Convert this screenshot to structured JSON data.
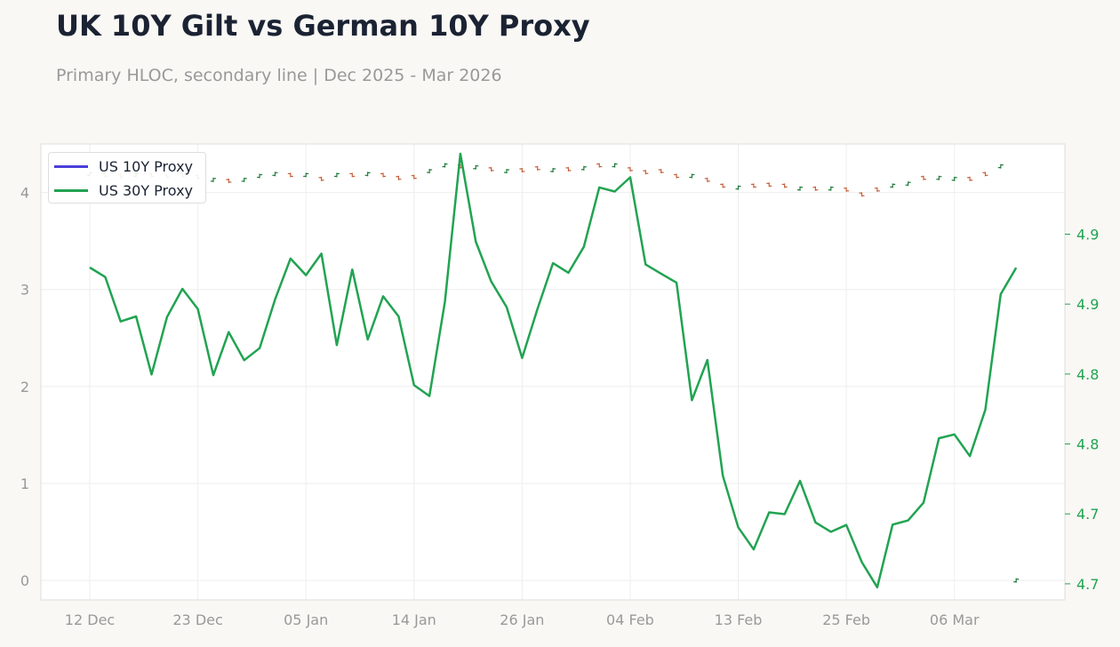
{
  "title": "UK 10Y Gilt vs German 10Y Proxy",
  "subtitle": "Primary HLOC, secondary line | Dec 2025 - Mar 2026",
  "colors": {
    "up": "#1e7a3a",
    "down": "#c4603a",
    "line": "#22a352",
    "legend_10y": "#4a3fd8",
    "axis_text": "#999999",
    "right_axis_text": "#22a352",
    "grid": "#eeeeee",
    "frame": "#dddddd"
  },
  "chart_data": {
    "type": "line",
    "x_labels": [
      "12 Dec",
      "23 Dec",
      "05 Jan",
      "14 Jan",
      "26 Jan",
      "04 Feb",
      "13 Feb",
      "25 Feb",
      "06 Mar"
    ],
    "left_axis": {
      "ylim": [
        -0.2,
        4.5
      ],
      "ticks": [
        0,
        1,
        2,
        3,
        4
      ]
    },
    "right_axis": {
      "ylim": [
        4.6385,
        4.9645
      ],
      "ticks": [
        4.65,
        4.7,
        4.75,
        4.8,
        4.85,
        4.9
      ],
      "tick_labels": [
        "4.7",
        "4.7",
        "4.8",
        "4.8",
        "4.9",
        "4.9"
      ]
    },
    "grid": true,
    "legend": {
      "placement": "top-left",
      "entries": [
        "US 10Y Proxy",
        "US 30Y Proxy"
      ]
    },
    "series": [
      {
        "name": "US 10Y Proxy",
        "kind": "hloc",
        "axis": "left",
        "up": [
          true,
          false,
          false,
          true,
          false,
          false,
          false,
          false,
          true,
          false,
          true,
          true,
          true,
          false,
          true,
          false,
          true,
          false,
          true,
          false,
          false,
          false,
          true,
          true,
          false,
          true,
          false,
          true,
          false,
          false,
          true,
          false,
          true,
          false,
          true,
          false,
          false,
          false,
          false,
          true,
          false,
          false,
          true,
          false,
          false,
          false,
          true,
          false,
          true,
          false,
          false,
          false,
          true,
          true,
          false,
          true,
          true,
          false,
          false,
          true,
          true
        ],
        "y": [
          4.19,
          4.18,
          4.17,
          4.18,
          4.18,
          4.17,
          4.18,
          4.16,
          4.13,
          4.12,
          4.13,
          4.17,
          4.19,
          4.18,
          4.18,
          4.14,
          4.18,
          4.18,
          4.19,
          4.18,
          4.15,
          4.16,
          4.22,
          4.28,
          4.27,
          4.26,
          4.24,
          4.22,
          4.23,
          4.25,
          4.23,
          4.24,
          4.25,
          4.28,
          4.28,
          4.24,
          4.21,
          4.22,
          4.17,
          4.17,
          4.13,
          4.07,
          4.05,
          4.07,
          4.08,
          4.07,
          4.04,
          4.04,
          4.04,
          4.03,
          3.98,
          4.03,
          4.07,
          4.09,
          4.15,
          4.15,
          4.14,
          4.14,
          4.19,
          4.27,
          0.0
        ]
      },
      {
        "name": "US 30Y Proxy",
        "kind": "line",
        "axis": "right",
        "y": [
          4.8762,
          4.8694,
          4.8376,
          4.8412,
          4.7997,
          4.8408,
          4.8609,
          4.8464,
          4.7992,
          4.83,
          4.8099,
          4.8185,
          4.8532,
          4.8826,
          4.8707,
          4.8861,
          4.8207,
          4.8747,
          4.8247,
          4.8556,
          4.8412,
          4.792,
          4.7843,
          4.8516,
          4.9575,
          4.8946,
          4.8662,
          4.8478,
          4.8115,
          4.8466,
          4.8793,
          4.8724,
          4.8909,
          4.9334,
          4.9305,
          4.9407,
          4.8783,
          4.8718,
          4.8653,
          4.7813,
          4.81,
          4.7273,
          4.6904,
          4.6746,
          4.7011,
          4.6998,
          4.7236,
          4.6939,
          4.6872,
          4.6921,
          4.6656,
          4.6475,
          4.6923,
          4.6953,
          4.708,
          4.7541,
          4.7568,
          4.7413,
          4.7745,
          4.8571,
          4.876
        ]
      }
    ]
  }
}
